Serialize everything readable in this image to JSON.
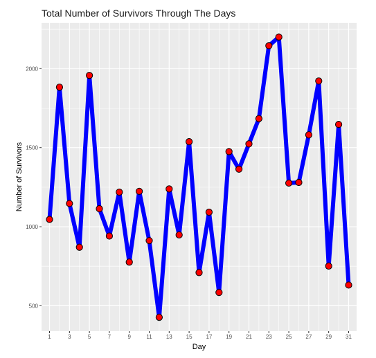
{
  "chart_data": {
    "type": "line",
    "title": "Total Number of Survivors Through The Days",
    "xlabel": "Day",
    "ylabel": "Number of Survivors",
    "x_ticks": [
      1,
      3,
      5,
      7,
      9,
      11,
      13,
      15,
      17,
      19,
      21,
      23,
      25,
      27,
      29,
      31
    ],
    "y_ticks": [
      500,
      1000,
      1500,
      2000
    ],
    "xlim": [
      0.2,
      31.8
    ],
    "ylim": [
      340,
      2290
    ],
    "grid": true,
    "series": [
      {
        "x": [
          1,
          2,
          3,
          4,
          5,
          6,
          7,
          8,
          9,
          10,
          11,
          12,
          13,
          14,
          15,
          16,
          17,
          18,
          19,
          20,
          21,
          22,
          23,
          24,
          25,
          26,
          27,
          28,
          29,
          30,
          31
        ],
        "values": [
          1046,
          1883,
          1147,
          870,
          1957,
          1114,
          941,
          1219,
          776,
          1224,
          912,
          427,
          1239,
          948,
          1538,
          710,
          1092,
          584,
          1475,
          1364,
          1524,
          1684,
          2145,
          2200,
          1276,
          1280,
          1581,
          1922,
          751,
          1647,
          631
        ],
        "line_color": "#0000ff",
        "marker_color": "#ff0000"
      }
    ]
  },
  "colors": {
    "panel_bg": "#ebebeb",
    "grid_major": "#ffffff",
    "tick_text": "#4d4d4d",
    "tick_mark": "#333333"
  }
}
